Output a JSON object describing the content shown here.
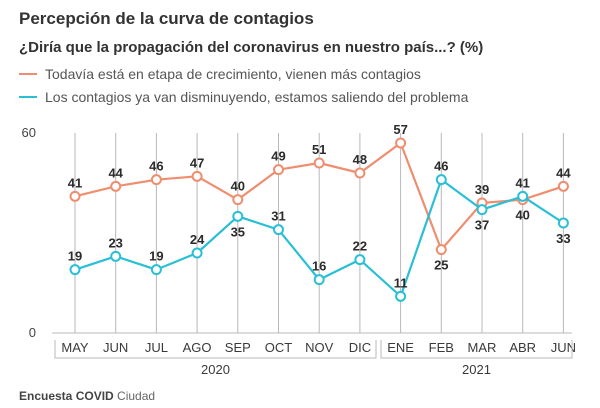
{
  "title": "Percepción de la curva de contagios",
  "subtitle": "¿Diría que la propagación del coronavirus en nuestro país...? (%)",
  "source": {
    "bold": "Encuesta COVID",
    "rest": " Ciudad"
  },
  "colors": {
    "series1": "#ef8e6f",
    "series2": "#29bfd5",
    "grid": "#b8b8b8",
    "text": "#2b2b2b"
  },
  "chart_data": {
    "type": "line",
    "categories": [
      "MAY",
      "JUN",
      "JUL",
      "AGO",
      "SEP",
      "OCT",
      "NOV",
      "DIC",
      "ENE",
      "FEB",
      "MAR",
      "ABR",
      "JUN"
    ],
    "years": [
      {
        "label": "2020",
        "from": 0,
        "to": 7
      },
      {
        "label": "2021",
        "from": 8,
        "to": 12
      }
    ],
    "ylim": [
      0,
      60
    ],
    "yticks": [
      0,
      60
    ],
    "series": [
      {
        "name": "Todavía está en etapa de crecimiento, vienen más contagios",
        "color": "#ef8e6f",
        "values": [
          41,
          44,
          46,
          47,
          40,
          49,
          51,
          48,
          57,
          25,
          39,
          40,
          44
        ]
      },
      {
        "name": "Los contagios ya van disminuyendo, estamos saliendo del problema",
        "color": "#29bfd5",
        "values": [
          19,
          23,
          19,
          24,
          35,
          31,
          16,
          22,
          11,
          46,
          37,
          41,
          33
        ]
      }
    ],
    "labels_below": [
      [
        false,
        false,
        false,
        false,
        false,
        false,
        false,
        false,
        false,
        true,
        false,
        true,
        false
      ],
      [
        false,
        false,
        false,
        false,
        true,
        false,
        false,
        false,
        false,
        false,
        true,
        false,
        true
      ]
    ]
  }
}
